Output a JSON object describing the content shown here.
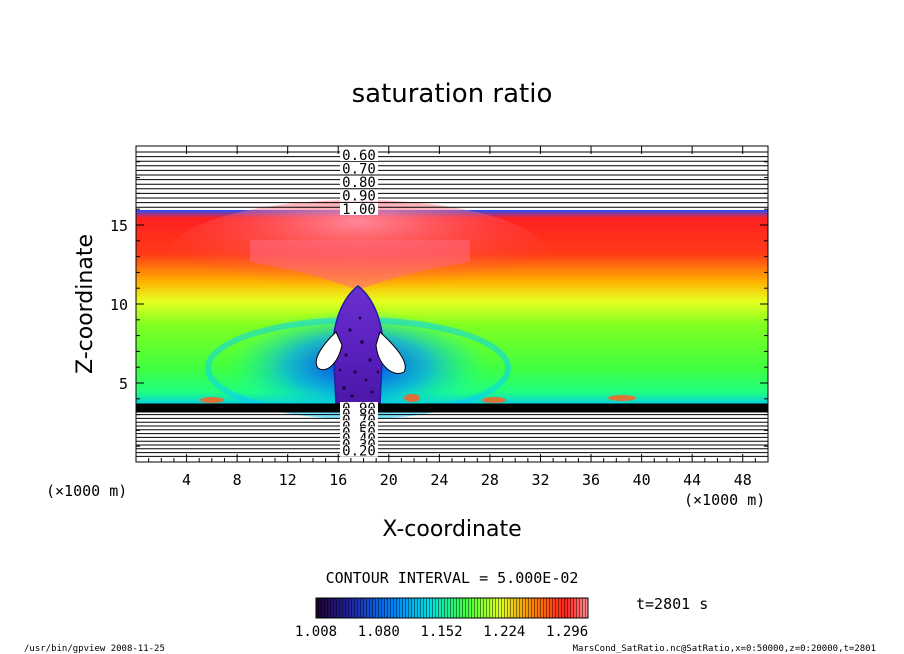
{
  "chart_data": {
    "type": "heatmap",
    "title": "saturation ratio",
    "xlabel": "X-coordinate",
    "ylabel": "Z-coordinate",
    "x_unit": "(×1000 m)",
    "y_unit": "(×1000 m)",
    "xlim": [
      0,
      50
    ],
    "ylim": [
      0,
      20
    ],
    "x_ticks": [
      4,
      8,
      12,
      16,
      20,
      24,
      28,
      32,
      36,
      40,
      44,
      48
    ],
    "y_ticks": [
      5,
      10,
      15
    ],
    "upper_contour_labels": [
      "0.60",
      "0.70",
      "0.80",
      "0.90",
      "1.00"
    ],
    "lower_contour_labels": [
      "0.90",
      "0.80",
      "0.70",
      "0.60",
      "0.50",
      "0.40",
      "0.30",
      "0.20"
    ],
    "contour_interval_text": "CONTOUR INTERVAL = 5.000E-02",
    "colorbar_ticks": [
      "1.008",
      "1.080",
      "1.152",
      "1.224",
      "1.296"
    ],
    "colorbar_range": [
      1.008,
      1.32
    ],
    "colors": {
      "low": "#200070",
      "mid_low": "#0060ff",
      "mid": "#40e040",
      "mid_high": "#ffff00",
      "high": "#ff2020",
      "top": "#ff9090"
    },
    "time_label": "t=2801 s"
  },
  "footer": {
    "left": "/usr/bin/gpview   2008-11-25",
    "right": "MarsCond_SatRatio.nc@SatRatio,x=0:50000,z=0:20000,t=2801"
  }
}
